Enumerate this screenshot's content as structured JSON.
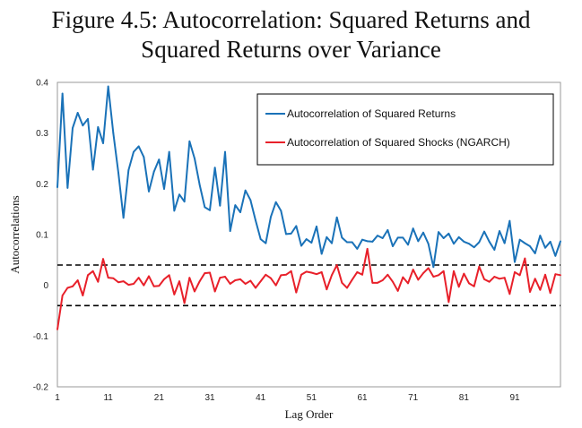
{
  "chart_data": {
    "type": "line",
    "title": [
      "Figure 4.5: Autocorrelation: Squared Returns and",
      "Squared Returns over Variance"
    ],
    "xlabel": "Lag Order",
    "ylabel": "Autocorrelations",
    "xlim": [
      1,
      100
    ],
    "ylim": [
      -0.2,
      0.4
    ],
    "x_ticks": [
      1,
      11,
      21,
      31,
      41,
      51,
      61,
      71,
      81,
      91
    ],
    "y_ticks": [
      -0.2,
      -0.1,
      0,
      0.1,
      0.2,
      0.3,
      0.4
    ],
    "y_tick_labels": [
      "-0.2",
      "-0.1",
      "0",
      "0.1",
      "0.2",
      "0.3",
      "0.4"
    ],
    "grid": false,
    "legend_position": "top-right",
    "bands": [
      {
        "value": 0.04,
        "style": "dashed",
        "color": "#000000"
      },
      {
        "value": -0.04,
        "style": "dashed",
        "color": "#000000"
      }
    ],
    "series": [
      {
        "name": "Autocorrelation of Squared Returns",
        "color": "#1a72b8",
        "values": [
          0.193,
          0.378,
          0.192,
          0.31,
          0.34,
          0.315,
          0.328,
          0.228,
          0.312,
          0.28,
          0.392,
          0.3,
          0.222,
          0.133,
          0.227,
          0.263,
          0.274,
          0.253,
          0.185,
          0.224,
          0.248,
          0.19,
          0.263,
          0.147,
          0.179,
          0.165,
          0.284,
          0.25,
          0.198,
          0.154,
          0.148,
          0.232,
          0.157,
          0.263,
          0.107,
          0.158,
          0.144,
          0.187,
          0.168,
          0.128,
          0.091,
          0.083,
          0.135,
          0.164,
          0.147,
          0.101,
          0.102,
          0.117,
          0.078,
          0.091,
          0.084,
          0.116,
          0.062,
          0.095,
          0.083,
          0.134,
          0.094,
          0.085,
          0.085,
          0.072,
          0.09,
          0.087,
          0.086,
          0.098,
          0.093,
          0.109,
          0.077,
          0.094,
          0.094,
          0.08,
          0.112,
          0.087,
          0.104,
          0.082,
          0.036,
          0.105,
          0.093,
          0.102,
          0.082,
          0.095,
          0.086,
          0.082,
          0.075,
          0.085,
          0.106,
          0.086,
          0.07,
          0.107,
          0.083,
          0.127,
          0.046,
          0.09,
          0.083,
          0.077,
          0.063,
          0.098,
          0.074,
          0.086,
          0.058,
          0.087
        ]
      },
      {
        "name": "Autocorrelation of Squared Shocks (NGARCH)",
        "color": "#e8202a",
        "values": [
          -0.087,
          -0.02,
          -0.005,
          -0.002,
          0.01,
          -0.02,
          0.02,
          0.028,
          0.007,
          0.052,
          0.015,
          0.014,
          0.006,
          0.008,
          0.001,
          0.003,
          0.015,
          0.0,
          0.018,
          -0.002,
          -0.001,
          0.012,
          0.02,
          -0.018,
          0.008,
          -0.035,
          0.015,
          -0.012,
          0.008,
          0.024,
          0.025,
          -0.012,
          0.015,
          0.017,
          0.003,
          0.01,
          0.012,
          0.003,
          0.009,
          -0.005,
          0.008,
          0.021,
          0.014,
          0.0,
          0.02,
          0.021,
          0.028,
          -0.014,
          0.021,
          0.027,
          0.025,
          0.022,
          0.026,
          -0.008,
          0.02,
          0.04,
          0.005,
          -0.005,
          0.011,
          0.026,
          0.021,
          0.072,
          0.005,
          0.005,
          0.01,
          0.021,
          0.007,
          -0.011,
          0.016,
          0.004,
          0.031,
          0.011,
          0.024,
          0.034,
          0.017,
          0.02,
          0.028,
          -0.033,
          0.028,
          -0.003,
          0.023,
          0.004,
          -0.002,
          0.037,
          0.012,
          0.007,
          0.017,
          0.013,
          0.015,
          -0.017,
          0.026,
          0.02,
          0.053,
          -0.013,
          0.013,
          -0.009,
          0.021,
          -0.015,
          0.022,
          0.02
        ]
      }
    ]
  }
}
